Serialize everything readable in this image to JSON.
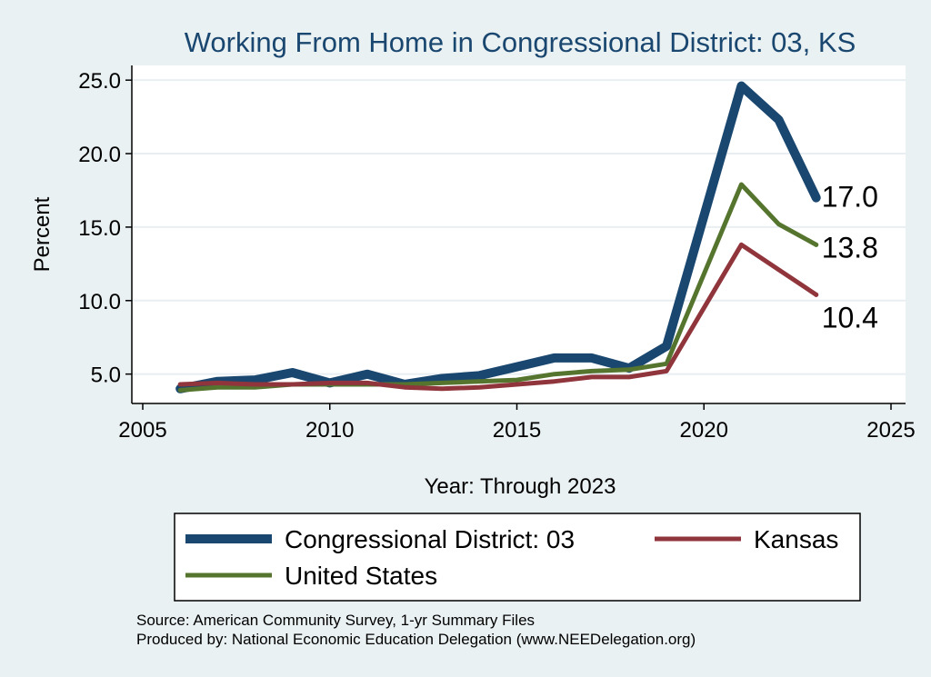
{
  "chart_data": {
    "type": "line",
    "title": "Working From Home in Congressional District: 03, KS",
    "xlabel": "Year: Through 2023",
    "ylabel": "Percent",
    "xlim": [
      2005,
      2025
    ],
    "ylim": [
      3.0,
      26.0
    ],
    "xticks": [
      "2005",
      "2010",
      "2015",
      "2020",
      "2025"
    ],
    "yticks": [
      "5.0",
      "10.0",
      "15.0",
      "20.0",
      "25.0"
    ],
    "xtick_values": [
      2005,
      2010,
      2015,
      2020,
      2025
    ],
    "ytick_values": [
      5,
      10,
      15,
      20,
      25
    ],
    "grid": true,
    "legend_position": "bottom",
    "x": [
      2006,
      2007,
      2008,
      2009,
      2010,
      2011,
      2012,
      2013,
      2014,
      2015,
      2016,
      2017,
      2018,
      2019,
      2021,
      2022,
      2023
    ],
    "series": [
      {
        "name": "Congressional District: 03",
        "color": "#1a476f",
        "values": [
          4.0,
          4.5,
          4.6,
          5.1,
          4.4,
          5.0,
          4.3,
          4.7,
          4.9,
          5.5,
          6.1,
          6.1,
          5.4,
          6.9,
          24.6,
          22.3,
          17.0
        ],
        "end_label": "17.0"
      },
      {
        "name": "Kansas",
        "color": "#90353b",
        "values": [
          4.3,
          4.4,
          4.3,
          4.3,
          4.4,
          4.4,
          4.1,
          4.0,
          4.1,
          4.3,
          4.5,
          4.8,
          4.8,
          5.2,
          13.8,
          12.1,
          10.4
        ],
        "end_label": "10.4"
      },
      {
        "name": "United States",
        "color": "#55752f",
        "values": [
          3.9,
          4.1,
          4.1,
          4.3,
          4.3,
          4.3,
          4.3,
          4.4,
          4.5,
          4.6,
          5.0,
          5.2,
          5.3,
          5.7,
          17.9,
          15.2,
          13.8
        ],
        "end_label": "13.8"
      }
    ]
  },
  "legend": {
    "items": [
      {
        "label": "Congressional District: 03"
      },
      {
        "label": "Kansas"
      },
      {
        "label": "United States"
      }
    ]
  },
  "notes": {
    "source": "Source: American Community Survey, 1-yr Summary Files",
    "produced_by": "Produced by: National Economic Education Delegation (www.NEEDelegation.org)"
  }
}
